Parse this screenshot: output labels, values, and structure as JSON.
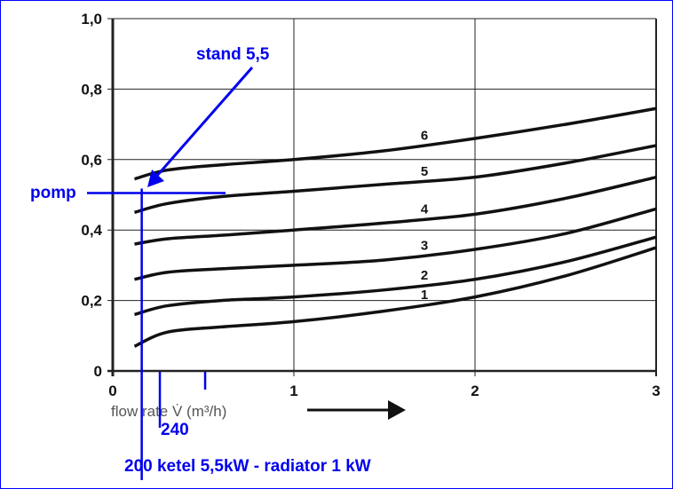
{
  "chart_data": {
    "type": "line",
    "title": "",
    "xlabel": "flow rate V̇ (m³/h)",
    "ylabel": "",
    "xlim": [
      0,
      3
    ],
    "ylim": [
      0,
      1.0
    ],
    "x_ticks": [
      "0",
      "1",
      "2",
      "3"
    ],
    "y_ticks": [
      "0",
      "0,2",
      "0,4",
      "0,6",
      "0,8",
      "1,0"
    ],
    "grid": true,
    "series": [
      {
        "name": "1",
        "x": [
          0.12,
          0.3,
          0.6,
          1.0,
          1.5,
          2.0,
          2.5,
          3.0
        ],
        "y": [
          0.07,
          0.11,
          0.125,
          0.14,
          0.17,
          0.21,
          0.27,
          0.35
        ]
      },
      {
        "name": "2",
        "x": [
          0.12,
          0.3,
          0.6,
          1.0,
          1.5,
          2.0,
          2.5,
          3.0
        ],
        "y": [
          0.16,
          0.185,
          0.2,
          0.21,
          0.23,
          0.26,
          0.31,
          0.38
        ]
      },
      {
        "name": "3",
        "x": [
          0.12,
          0.3,
          0.6,
          1.0,
          1.5,
          2.0,
          2.5,
          3.0
        ],
        "y": [
          0.26,
          0.28,
          0.29,
          0.3,
          0.315,
          0.345,
          0.39,
          0.46
        ]
      },
      {
        "name": "4",
        "x": [
          0.12,
          0.3,
          0.6,
          1.0,
          1.5,
          2.0,
          2.5,
          3.0
        ],
        "y": [
          0.36,
          0.375,
          0.385,
          0.4,
          0.42,
          0.445,
          0.49,
          0.55
        ]
      },
      {
        "name": "5",
        "x": [
          0.12,
          0.3,
          0.6,
          1.0,
          1.5,
          2.0,
          2.5,
          3.0
        ],
        "y": [
          0.45,
          0.475,
          0.495,
          0.51,
          0.53,
          0.55,
          0.59,
          0.64
        ]
      },
      {
        "name": "6",
        "x": [
          0.12,
          0.3,
          0.6,
          1.0,
          1.5,
          2.0,
          2.5,
          3.0
        ],
        "y": [
          0.545,
          0.57,
          0.585,
          0.6,
          0.625,
          0.66,
          0.7,
          0.745
        ]
      }
    ],
    "curve_label_x": 1.73,
    "annotations": {
      "stand": "stand 5,5",
      "pomp": "pomp",
      "pomp_y": 0.505,
      "flow_200": "200 ketel 5,5kW - radiator 1 kW",
      "flow_200_x": 0.16,
      "flow_240": "240",
      "flow_240_x": 0.26,
      "extra_tick_x": 0.51
    }
  },
  "colors": {
    "annotation": "#0000ee",
    "curve": "#111111",
    "grid": "#222222"
  }
}
